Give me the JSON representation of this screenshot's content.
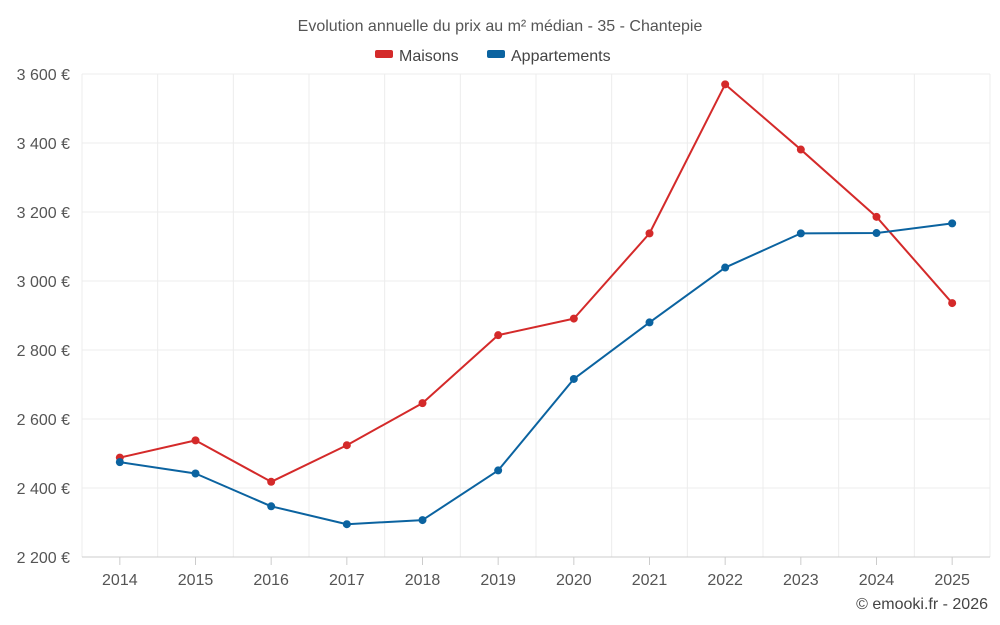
{
  "chart_data": {
    "type": "line",
    "title": "Evolution annuelle du prix au m² médian - 35 - Chantepie",
    "xlabel": "",
    "ylabel": "",
    "categories": [
      "2014",
      "2015",
      "2016",
      "2017",
      "2018",
      "2019",
      "2020",
      "2021",
      "2022",
      "2023",
      "2024",
      "2025"
    ],
    "series": [
      {
        "name": "Maisons",
        "color": "#d42a2a",
        "values": [
          2488,
          2538,
          2418,
          2524,
          2646,
          2843,
          2891,
          3138,
          3570,
          3381,
          3186,
          2936
        ]
      },
      {
        "name": "Appartements",
        "color": "#0b63a0",
        "values": [
          2475,
          2442,
          2347,
          2295,
          2307,
          2451,
          2716,
          2880,
          3039,
          3138,
          3139,
          3167
        ]
      }
    ],
    "ylim": [
      2200,
      3600
    ],
    "yticks": [
      2200,
      2400,
      2600,
      2800,
      3000,
      3200,
      3400,
      3600
    ],
    "ytick_labels": [
      "2 200 €",
      "2 400 €",
      "2 600 €",
      "2 800 €",
      "3 000 €",
      "3 200 €",
      "3 400 €",
      "3 600 €"
    ],
    "grid": true,
    "legend_position": "top-center"
  },
  "credit": "© emooki.fr - 2026"
}
